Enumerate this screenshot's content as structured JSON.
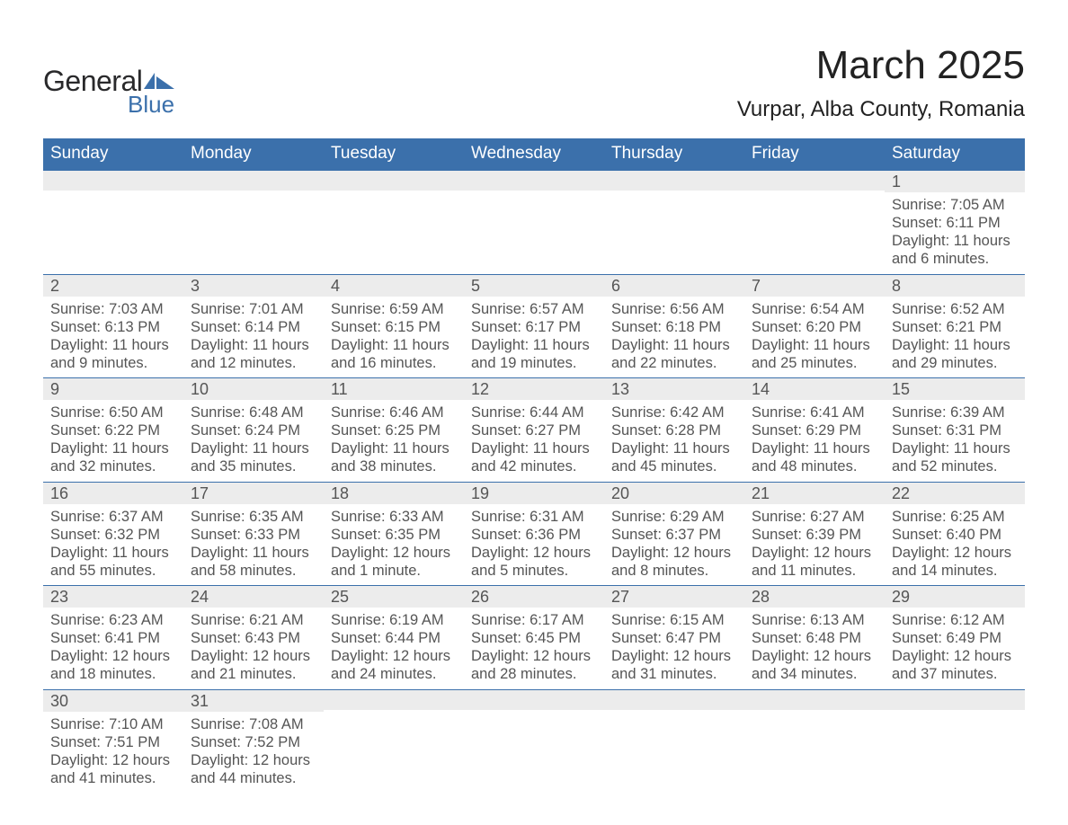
{
  "colors": {
    "header_bg": "#3b70ab",
    "header_text": "#ffffff",
    "strip_bg": "#ececec",
    "row_border": "#3b70ab",
    "body_text": "#555555",
    "title_text": "#222222",
    "logo_dark": "#29292b",
    "logo_blue": "#3b70ab",
    "page_bg": "#ffffff"
  },
  "typography": {
    "month_title_size_pt": 33,
    "location_size_pt": 18,
    "dow_size_pt": 14,
    "daynum_size_pt": 13,
    "detail_size_pt": 12
  },
  "logo": {
    "text1": "General",
    "text2": "Blue"
  },
  "title": "March 2025",
  "location": "Vurpar, Alba County, Romania",
  "days_of_week": [
    "Sunday",
    "Monday",
    "Tuesday",
    "Wednesday",
    "Thursday",
    "Friday",
    "Saturday"
  ],
  "labels": {
    "sunrise": "Sunrise:",
    "sunset": "Sunset:",
    "daylight": "Daylight:"
  },
  "weeks": [
    [
      null,
      null,
      null,
      null,
      null,
      null,
      {
        "n": "1",
        "sunrise": "7:05 AM",
        "sunset": "6:11 PM",
        "daylight": "11 hours and 6 minutes."
      }
    ],
    [
      {
        "n": "2",
        "sunrise": "7:03 AM",
        "sunset": "6:13 PM",
        "daylight": "11 hours and 9 minutes."
      },
      {
        "n": "3",
        "sunrise": "7:01 AM",
        "sunset": "6:14 PM",
        "daylight": "11 hours and 12 minutes."
      },
      {
        "n": "4",
        "sunrise": "6:59 AM",
        "sunset": "6:15 PM",
        "daylight": "11 hours and 16 minutes."
      },
      {
        "n": "5",
        "sunrise": "6:57 AM",
        "sunset": "6:17 PM",
        "daylight": "11 hours and 19 minutes."
      },
      {
        "n": "6",
        "sunrise": "6:56 AM",
        "sunset": "6:18 PM",
        "daylight": "11 hours and 22 minutes."
      },
      {
        "n": "7",
        "sunrise": "6:54 AM",
        "sunset": "6:20 PM",
        "daylight": "11 hours and 25 minutes."
      },
      {
        "n": "8",
        "sunrise": "6:52 AM",
        "sunset": "6:21 PM",
        "daylight": "11 hours and 29 minutes."
      }
    ],
    [
      {
        "n": "9",
        "sunrise": "6:50 AM",
        "sunset": "6:22 PM",
        "daylight": "11 hours and 32 minutes."
      },
      {
        "n": "10",
        "sunrise": "6:48 AM",
        "sunset": "6:24 PM",
        "daylight": "11 hours and 35 minutes."
      },
      {
        "n": "11",
        "sunrise": "6:46 AM",
        "sunset": "6:25 PM",
        "daylight": "11 hours and 38 minutes."
      },
      {
        "n": "12",
        "sunrise": "6:44 AM",
        "sunset": "6:27 PM",
        "daylight": "11 hours and 42 minutes."
      },
      {
        "n": "13",
        "sunrise": "6:42 AM",
        "sunset": "6:28 PM",
        "daylight": "11 hours and 45 minutes."
      },
      {
        "n": "14",
        "sunrise": "6:41 AM",
        "sunset": "6:29 PM",
        "daylight": "11 hours and 48 minutes."
      },
      {
        "n": "15",
        "sunrise": "6:39 AM",
        "sunset": "6:31 PM",
        "daylight": "11 hours and 52 minutes."
      }
    ],
    [
      {
        "n": "16",
        "sunrise": "6:37 AM",
        "sunset": "6:32 PM",
        "daylight": "11 hours and 55 minutes."
      },
      {
        "n": "17",
        "sunrise": "6:35 AM",
        "sunset": "6:33 PM",
        "daylight": "11 hours and 58 minutes."
      },
      {
        "n": "18",
        "sunrise": "6:33 AM",
        "sunset": "6:35 PM",
        "daylight": "12 hours and 1 minute."
      },
      {
        "n": "19",
        "sunrise": "6:31 AM",
        "sunset": "6:36 PM",
        "daylight": "12 hours and 5 minutes."
      },
      {
        "n": "20",
        "sunrise": "6:29 AM",
        "sunset": "6:37 PM",
        "daylight": "12 hours and 8 minutes."
      },
      {
        "n": "21",
        "sunrise": "6:27 AM",
        "sunset": "6:39 PM",
        "daylight": "12 hours and 11 minutes."
      },
      {
        "n": "22",
        "sunrise": "6:25 AM",
        "sunset": "6:40 PM",
        "daylight": "12 hours and 14 minutes."
      }
    ],
    [
      {
        "n": "23",
        "sunrise": "6:23 AM",
        "sunset": "6:41 PM",
        "daylight": "12 hours and 18 minutes."
      },
      {
        "n": "24",
        "sunrise": "6:21 AM",
        "sunset": "6:43 PM",
        "daylight": "12 hours and 21 minutes."
      },
      {
        "n": "25",
        "sunrise": "6:19 AM",
        "sunset": "6:44 PM",
        "daylight": "12 hours and 24 minutes."
      },
      {
        "n": "26",
        "sunrise": "6:17 AM",
        "sunset": "6:45 PM",
        "daylight": "12 hours and 28 minutes."
      },
      {
        "n": "27",
        "sunrise": "6:15 AM",
        "sunset": "6:47 PM",
        "daylight": "12 hours and 31 minutes."
      },
      {
        "n": "28",
        "sunrise": "6:13 AM",
        "sunset": "6:48 PM",
        "daylight": "12 hours and 34 minutes."
      },
      {
        "n": "29",
        "sunrise": "6:12 AM",
        "sunset": "6:49 PM",
        "daylight": "12 hours and 37 minutes."
      }
    ],
    [
      {
        "n": "30",
        "sunrise": "7:10 AM",
        "sunset": "7:51 PM",
        "daylight": "12 hours and 41 minutes."
      },
      {
        "n": "31",
        "sunrise": "7:08 AM",
        "sunset": "7:52 PM",
        "daylight": "12 hours and 44 minutes."
      },
      null,
      null,
      null,
      null,
      null
    ]
  ]
}
